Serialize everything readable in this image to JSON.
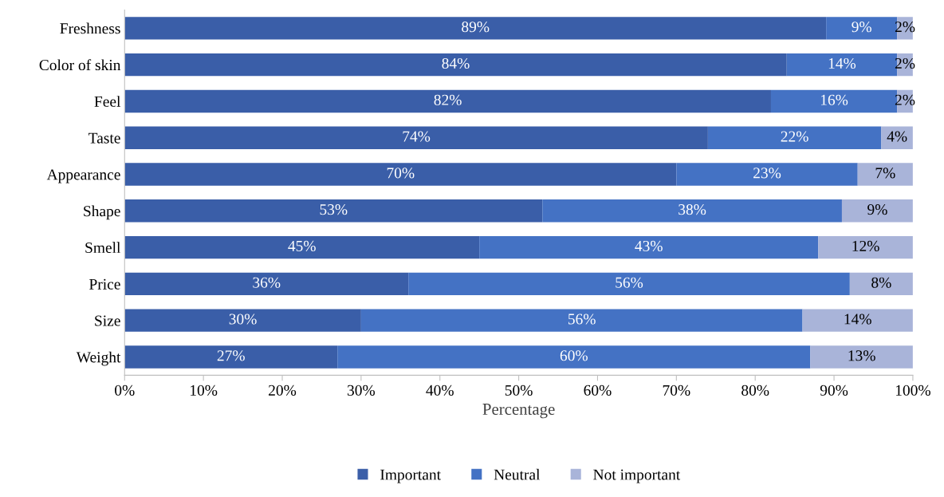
{
  "chart_data": {
    "type": "bar",
    "orientation": "horizontal",
    "stacked": true,
    "xlabel": "Percentage",
    "categories": [
      "Freshness",
      "Color of skin",
      "Feel",
      "Taste",
      "Appearance",
      "Shape",
      "Smell",
      "Price",
      "Size",
      "Weight"
    ],
    "series": [
      {
        "name": "Important",
        "color": "#3a5ea8",
        "values": [
          89,
          84,
          82,
          74,
          70,
          53,
          45,
          36,
          30,
          27
        ],
        "value_labels": [
          "89%",
          "84%",
          "82%",
          "74%",
          "70%",
          "53%",
          "45%",
          "36%",
          "30%",
          "27%"
        ]
      },
      {
        "name": "Neutral",
        "color": "#4472c4",
        "values": [
          9,
          14,
          16,
          22,
          23,
          38,
          43,
          56,
          56,
          60
        ],
        "value_labels": [
          "9%",
          "14%",
          "16%",
          "22%",
          "23%",
          "38%",
          "43%",
          "56%",
          "56%",
          "60%"
        ]
      },
      {
        "name": "Not important",
        "color": "#a9b4d9",
        "values": [
          2,
          2,
          2,
          4,
          7,
          9,
          12,
          8,
          14,
          13
        ],
        "value_labels": [
          "2%",
          "2%",
          "2%",
          "4%",
          "7%",
          "9%",
          "12%",
          "8%",
          "14%",
          "13%"
        ]
      }
    ],
    "xlim": [
      0,
      100
    ],
    "xticks": [
      {
        "value": 0,
        "label": "0%"
      },
      {
        "value": 10,
        "label": "10%"
      },
      {
        "value": 20,
        "label": "20%"
      },
      {
        "value": 30,
        "label": "30%"
      },
      {
        "value": 40,
        "label": "40%"
      },
      {
        "value": 50,
        "label": "50%"
      },
      {
        "value": 60,
        "label": "60%"
      },
      {
        "value": 70,
        "label": "70%"
      },
      {
        "value": 80,
        "label": "80%"
      },
      {
        "value": 90,
        "label": "90%"
      },
      {
        "value": 100,
        "label": "100%"
      }
    ],
    "legend": "bottom",
    "grid": false
  }
}
